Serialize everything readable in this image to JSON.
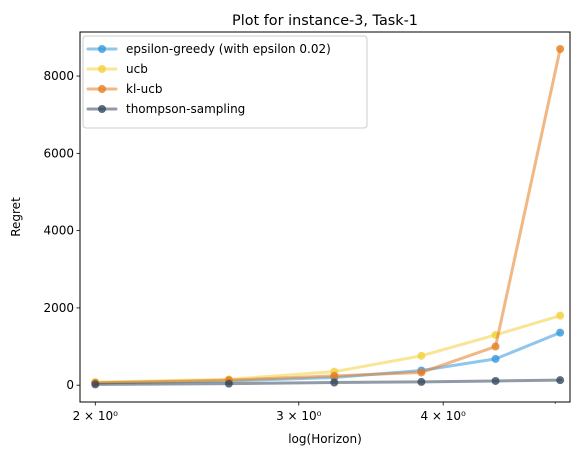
{
  "chart_data": {
    "type": "line",
    "title": "Plot for instance-3, Task-1",
    "xlabel": "log(Horizon)",
    "ylabel": "Regret",
    "xscale": "log",
    "xlim": [
      1.94,
      5.15
    ],
    "ylim": [
      -435,
      9140
    ],
    "x": [
      2.0,
      2.61,
      3.22,
      3.83,
      4.44,
      5.05
    ],
    "x_ticks": [
      {
        "value": 2,
        "label": "2 × 10⁰"
      },
      {
        "value": 3,
        "label": "3 × 10⁰"
      },
      {
        "value": 4,
        "label": "4 × 10⁰"
      }
    ],
    "y_ticks": [
      0,
      2000,
      4000,
      6000,
      8000
    ],
    "grid": false,
    "legend_position": "top-left",
    "series": [
      {
        "name": "epsilon-greedy (with epsilon 0.02)",
        "color": "#3498db",
        "values": [
          60,
          110,
          200,
          380,
          680,
          1360
        ]
      },
      {
        "name": "ucb",
        "color": "#f4d03f",
        "values": [
          80,
          150,
          350,
          760,
          1300,
          1800
        ]
      },
      {
        "name": "kl-ucb",
        "color": "#e67e22",
        "values": [
          60,
          130,
          240,
          330,
          1000,
          8700
        ]
      },
      {
        "name": "thompson-sampling",
        "color": "#34495e",
        "values": [
          20,
          40,
          70,
          85,
          110,
          130
        ]
      }
    ]
  }
}
